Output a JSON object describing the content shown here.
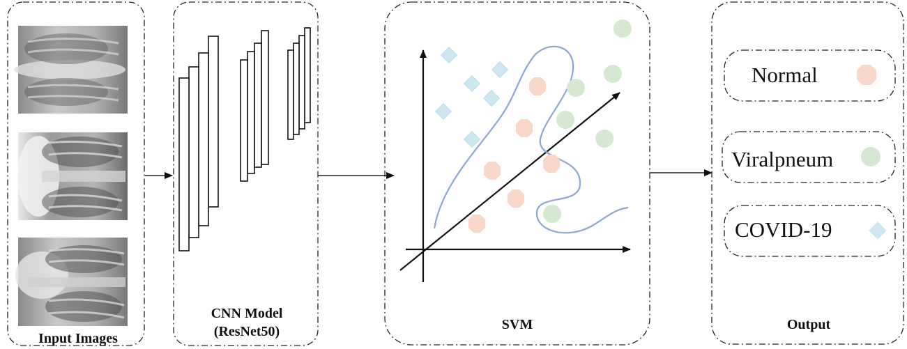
{
  "stages": {
    "input": {
      "caption": "Input Images"
    },
    "cnn": {
      "caption_line1": "CNN Model",
      "caption_line2": "(ResNet50)"
    },
    "svm": {
      "caption": "SVM"
    },
    "output": {
      "caption": "Output"
    }
  },
  "outputs": [
    {
      "label": "Normal",
      "marker": "octagon",
      "color": "#f9d7c8"
    },
    {
      "label": "Viralpneum",
      "marker": "circle",
      "color": "#d5e9d0"
    },
    {
      "label": "COVID-19",
      "marker": "diamond",
      "color": "#cde8f2"
    }
  ],
  "icons": [
    "arrow-right-icon",
    "chest-xray-image",
    "cnn-layer-icon"
  ]
}
